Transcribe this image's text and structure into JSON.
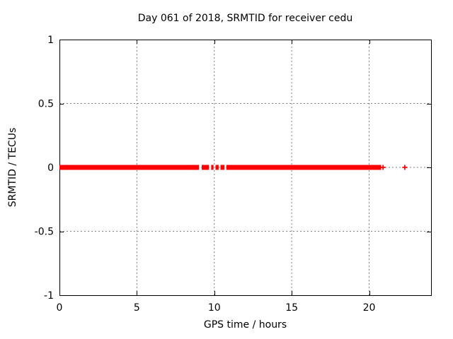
{
  "chart_data": {
    "type": "scatter",
    "title": "Day 061 of 2018, SRMTID for receiver cedu",
    "xlabel": "GPS time / hours",
    "ylabel": "SRMTID / TECUs",
    "xlim": [
      0,
      24
    ],
    "ylim": [
      -1,
      1
    ],
    "x_ticks": [
      0,
      5,
      10,
      15,
      20
    ],
    "x_tick_labels": [
      "0",
      "5",
      "10",
      "15",
      "20"
    ],
    "y_ticks": [
      -1,
      -0.5,
      0,
      0.5,
      1
    ],
    "y_tick_labels": [
      "-1",
      "-0.5",
      "0",
      "0.5",
      "1"
    ],
    "grid": true,
    "legend": "none",
    "marker": "plus",
    "colors": {
      "marker": "#ff0000",
      "grid": "#808080",
      "axis": "#000000",
      "text": "#000000",
      "background": "#ffffff"
    },
    "series": [
      {
        "name": "SRMTID",
        "y_value": 0,
        "dense_segments_x_hours": [
          [
            0.0,
            9.01
          ],
          [
            9.19,
            9.65
          ],
          [
            9.8,
            9.95
          ],
          [
            10.08,
            10.28
          ],
          [
            10.4,
            10.65
          ],
          [
            10.78,
            20.78
          ]
        ],
        "isolated_points_x_hours": [
          20.9,
          22.3
        ]
      }
    ]
  }
}
